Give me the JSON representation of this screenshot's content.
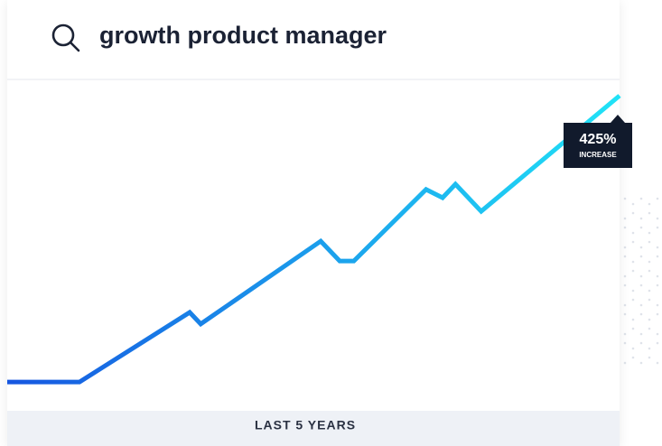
{
  "search": {
    "query": "growth product manager"
  },
  "chart_data": {
    "type": "line",
    "x": [
      0,
      11.8,
      29.8,
      31.6,
      51.2,
      54.3,
      56.6,
      68.4,
      71.1,
      73.2,
      77.4,
      100
    ],
    "values": [
      8.7,
      8.7,
      29.7,
      26.2,
      51.2,
      45.2,
      45.2,
      66.8,
      64.3,
      68.4,
      60.2,
      95.1
    ],
    "xlim": [
      0,
      100
    ],
    "ylim": [
      0,
      100
    ],
    "colors": [
      "#1656e0",
      "#20e3f7"
    ],
    "annotation": {
      "title": "425%",
      "subtitle": "INCREASE"
    },
    "footer": "LAST 5 YEARS"
  }
}
